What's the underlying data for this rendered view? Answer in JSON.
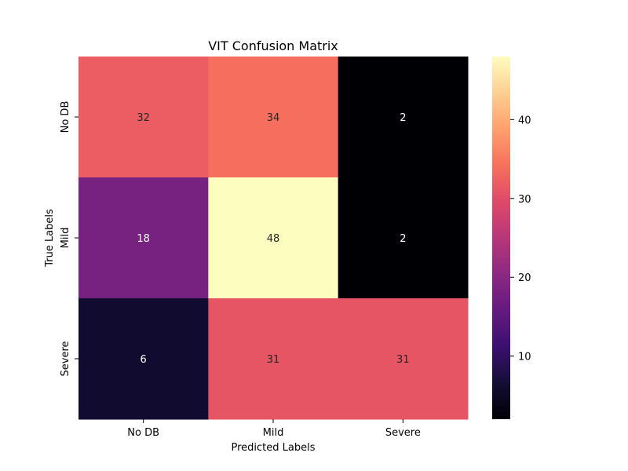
{
  "chart_data": {
    "type": "heatmap",
    "title": "VIT Confusion Matrix",
    "xlabel": "Predicted Labels",
    "ylabel": "True Labels",
    "x_categories": [
      "No DB",
      "Mild",
      "Severe"
    ],
    "y_categories": [
      "No DB",
      "Mild",
      "Severe"
    ],
    "values": [
      [
        32,
        34,
        2
      ],
      [
        18,
        48,
        2
      ],
      [
        6,
        31,
        31
      ]
    ],
    "colormap": "magma",
    "colorbar": {
      "range": [
        2,
        48
      ],
      "ticks": [
        10,
        20,
        30,
        40
      ]
    },
    "annotations": true,
    "grid": false
  }
}
